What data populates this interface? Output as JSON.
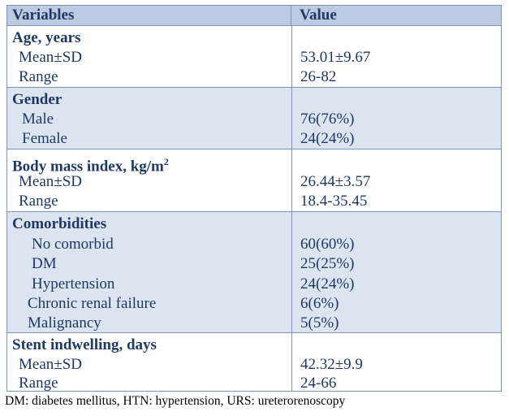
{
  "header": {
    "variables": "Variables",
    "value": "Value"
  },
  "sections": [
    {
      "title": "Age, years",
      "rows": [
        {
          "label": "Mean±SD",
          "value": "53.01±9.67"
        },
        {
          "label": "Range",
          "value": "26-82"
        }
      ]
    },
    {
      "title": "Gender",
      "rows": [
        {
          "label": "Male",
          "value": "76(76%)"
        },
        {
          "label": "Female",
          "value": "24(24%)"
        }
      ]
    },
    {
      "title": "Body mass index, kg/m",
      "title_sup": "2",
      "rows": [
        {
          "label": "Mean±SD",
          "value": "26.44±3.57"
        },
        {
          "label": "Range",
          "value": "18.4-35.45"
        }
      ]
    },
    {
      "title": "Comorbidities",
      "rows": [
        {
          "label": "No comorbid",
          "value": "60(60%)"
        },
        {
          "label": "DM",
          "value": "25(25%)"
        },
        {
          "label": "Hypertension",
          "value": "24(24%)"
        },
        {
          "label": "Chronic renal failure",
          "value": "6(6%)"
        },
        {
          "label": "Malignancy",
          "value": "5(5%)"
        }
      ]
    },
    {
      "title": "Stent indwelling, days",
      "rows": [
        {
          "label": "Mean±SD",
          "value": "42.32±9.9"
        },
        {
          "label": "Range",
          "value": "24-66"
        }
      ]
    }
  ],
  "footnote": "DM: diabetes mellitus, HTN: hypertension, URS: ureterorenoscopy"
}
